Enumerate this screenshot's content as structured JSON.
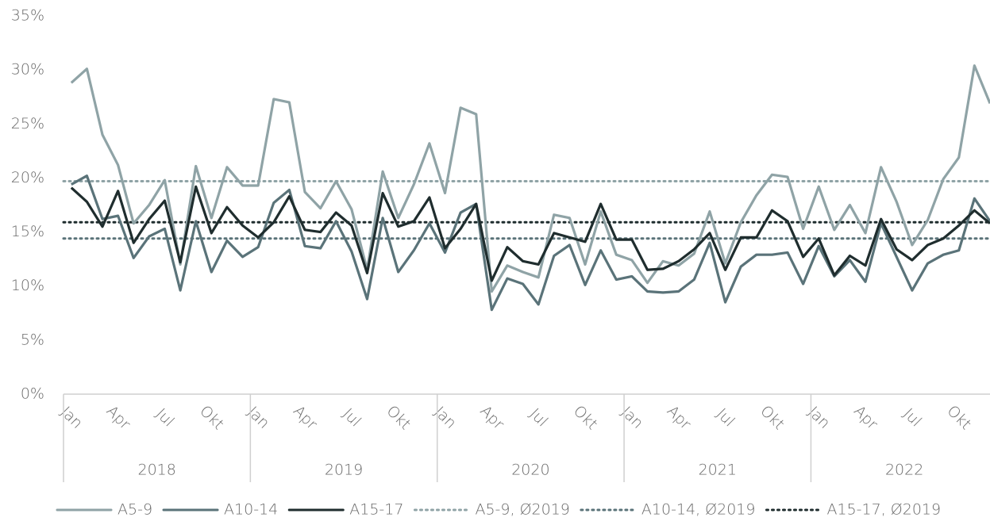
{
  "chart_data": {
    "type": "line",
    "categories": [
      "Jan",
      null,
      null,
      "Apr",
      null,
      null,
      "Jul",
      null,
      null,
      "Okt",
      null,
      null,
      "Jan",
      null,
      null,
      "Apr",
      null,
      null,
      "Jul",
      null,
      null,
      "Okt",
      null,
      null,
      "Jan",
      null,
      null,
      "Apr",
      null,
      null,
      "Jul",
      null,
      null,
      "Okt",
      null,
      null,
      "Jan",
      null,
      null,
      "Apr",
      null,
      null,
      "Jul",
      null,
      null,
      "Okt",
      null,
      null,
      "Jan",
      null,
      null,
      "Apr",
      null,
      null,
      "Jul",
      null,
      null,
      "Okt",
      null,
      null
    ],
    "years": [
      "2018",
      "2019",
      "2020",
      "2021",
      "2022"
    ],
    "series": [
      {
        "name": "A5-9",
        "color": "#8fa3a6",
        "values": [
          28.8,
          30.1,
          24,
          21.2,
          15.8,
          17.5,
          19.8,
          12,
          21.1,
          16.3,
          21,
          19.3,
          19.3,
          27.3,
          27,
          18.7,
          17.2,
          19.7,
          17.1,
          11.5,
          20.6,
          16.3,
          19.4,
          23.2,
          18.6,
          26.5,
          25.9,
          9.5,
          11.9,
          11.3,
          10.8,
          16.6,
          16.3,
          12.0,
          16.9,
          12.9,
          12.4,
          10.3,
          12.3,
          11.9,
          13.0,
          16.9,
          12.1,
          15.9,
          18.4,
          20.3,
          20.1,
          15.3,
          19.2,
          15.2,
          17.5,
          14.9,
          21.0,
          17.8,
          13.8,
          16.1,
          19.9,
          21.9,
          30.4,
          26.9
        ]
      },
      {
        "name": "A10-14",
        "color": "#5a7379",
        "values": [
          19.4,
          20.2,
          16.2,
          16.5,
          12.6,
          14.6,
          15.3,
          9.6,
          16.0,
          11.3,
          14.2,
          12.7,
          13.6,
          17.7,
          18.9,
          13.7,
          13.5,
          16.0,
          13.2,
          8.8,
          16.3,
          11.3,
          13.3,
          15.8,
          13.1,
          16.8,
          17.6,
          7.8,
          10.7,
          10.2,
          8.3,
          12.8,
          13.8,
          10.1,
          13.3,
          10.6,
          10.9,
          9.5,
          9.4,
          9.5,
          10.6,
          14.0,
          8.5,
          11.8,
          12.9,
          12.9,
          13.1,
          10.2,
          13.7,
          10.9,
          12.4,
          10.4,
          15.8,
          12.7,
          9.6,
          12.1,
          12.9,
          13.3,
          18.1,
          16.0
        ]
      },
      {
        "name": "A15-17",
        "color": "#1f2d2e",
        "values": [
          19.1,
          17.8,
          15.5,
          18.8,
          14.0,
          16.2,
          17.9,
          12.2,
          19.2,
          14.9,
          17.3,
          15.6,
          14.5,
          15.9,
          18.3,
          15.2,
          15.0,
          16.8,
          15.6,
          11.2,
          18.6,
          15.5,
          16.0,
          18.2,
          13.5,
          15.3,
          17.6,
          10.5,
          13.6,
          12.3,
          12.0,
          14.9,
          14.5,
          14.1,
          17.6,
          14.3,
          14.3,
          11.5,
          11.6,
          12.3,
          13.4,
          14.9,
          11.5,
          14.5,
          14.5,
          17.0,
          16.0,
          12.7,
          14.4,
          11.0,
          12.8,
          11.9,
          16.2,
          13.4,
          12.4,
          13.8,
          14.4,
          15.6,
          17.0,
          15.8
        ]
      }
    ],
    "reference_lines": [
      {
        "name": "A5-9, Ø2019",
        "color": "#8fa3a6",
        "value": 19.7
      },
      {
        "name": "A10-14, Ø2019",
        "color": "#5a7379",
        "value": 14.4
      },
      {
        "name": "A15-17, Ø2019",
        "color": "#1f2d2e",
        "value": 15.9
      }
    ],
    "ylim": [
      0,
      35
    ],
    "yticks": [
      {
        "value": 0,
        "label": "0%"
      },
      {
        "value": 5,
        "label": "5%"
      },
      {
        "value": 10,
        "label": "10%"
      },
      {
        "value": 15,
        "label": "15%"
      },
      {
        "value": 20,
        "label": "20%"
      },
      {
        "value": 25,
        "label": "25%"
      },
      {
        "value": 30,
        "label": "30%"
      },
      {
        "value": 35,
        "label": "35%"
      }
    ],
    "legend": "bottom"
  }
}
